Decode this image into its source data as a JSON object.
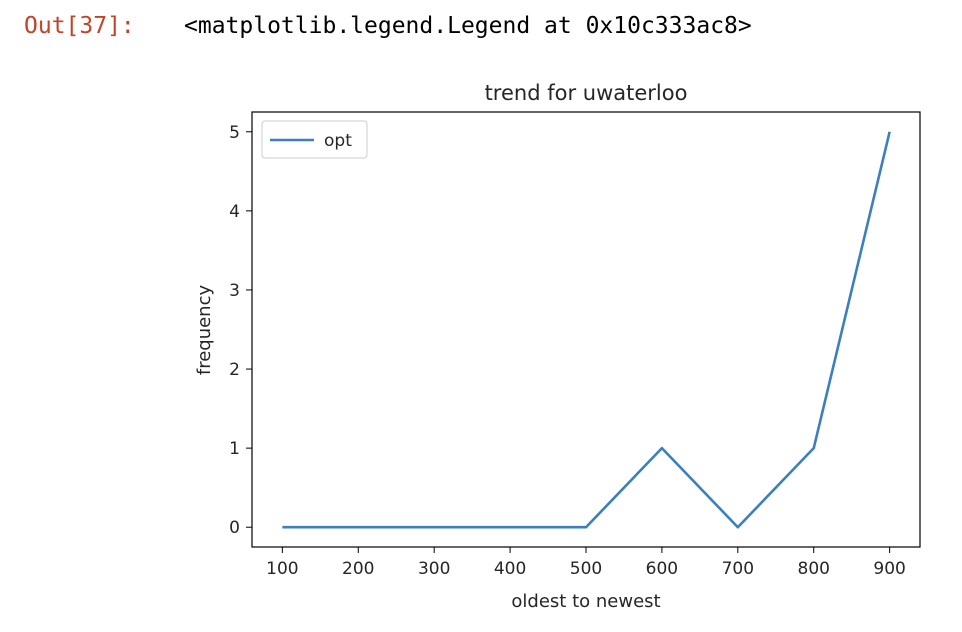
{
  "cell": {
    "prompt": "Out[37]:",
    "output_text": "<matplotlib.legend.Legend at 0x10c333ac8>"
  },
  "chart_data": {
    "type": "line",
    "title": "trend for uwaterloo",
    "xlabel": "oldest to newest",
    "ylabel": "frequency",
    "x": [
      100,
      200,
      300,
      400,
      500,
      600,
      700,
      800,
      900
    ],
    "series": [
      {
        "name": "opt",
        "color": "#3b7fbf",
        "values": [
          0,
          0,
          0,
          0,
          0,
          1,
          0,
          1,
          5
        ]
      }
    ],
    "x_ticks": [
      100,
      200,
      300,
      400,
      500,
      600,
      700,
      800,
      900
    ],
    "y_ticks": [
      0,
      1,
      2,
      3,
      4,
      5
    ],
    "xlim": [
      60,
      940
    ],
    "ylim": [
      -0.25,
      5.25
    ],
    "grid": false,
    "legend_position": "upper left"
  }
}
